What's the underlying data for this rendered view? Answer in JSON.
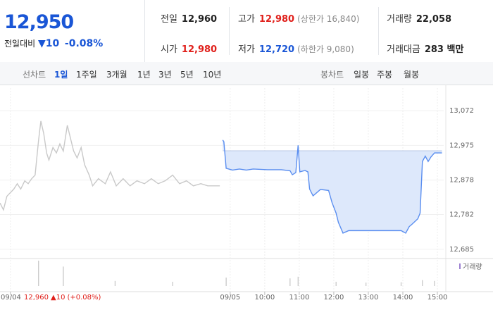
{
  "header": {
    "price": "12,950",
    "change_label": "전일대비",
    "change": "10",
    "change_pct": "-0.08%",
    "stats": [
      {
        "label": "전일",
        "value": "12,960"
      },
      {
        "label": "고가",
        "value": "12,980",
        "extra": "(상한가 16,840)"
      },
      {
        "label": "거래량",
        "value": "22,058"
      },
      {
        "label": "시가",
        "value": "12,980"
      },
      {
        "label": "저가",
        "value": "12,720",
        "extra": "(하한가 9,080)"
      },
      {
        "label": "거래대금",
        "value": "283 백만"
      }
    ]
  },
  "tabs": {
    "line_label": "선차트",
    "line_periods": [
      "1일",
      "1주일",
      "3개월",
      "1년",
      "3년",
      "5년",
      "10년"
    ],
    "candle_label": "봉차트",
    "candle_periods": [
      "일봉",
      "주봉",
      "월봉"
    ]
  },
  "chart_data": {
    "type": "line",
    "xlim": [
      -400,
      371
    ],
    "ylim": [
      12663,
      13135
    ],
    "yticks": [
      {
        "value": 13072,
        "label": "13,072"
      },
      {
        "value": 12975,
        "label": "12,975"
      },
      {
        "value": 12878,
        "label": "12,878"
      },
      {
        "value": 12782,
        "label": "12,782"
      },
      {
        "value": 12685,
        "label": "12,685"
      }
    ],
    "xticks": [
      {
        "value": -382,
        "label": "09/04"
      },
      {
        "value": 0,
        "label": "09/05"
      },
      {
        "value": 60,
        "label": "10:00"
      },
      {
        "value": 120,
        "label": "11:00"
      },
      {
        "value": 180,
        "label": "12:00"
      },
      {
        "value": 240,
        "label": "13:00"
      },
      {
        "value": 300,
        "label": "14:00"
      },
      {
        "value": 360,
        "label": "15:00"
      }
    ],
    "baseline": 12960,
    "series": [
      {
        "color": "#c9c9c9",
        "x": [
          -400,
          -394,
          -388,
          -382,
          -376,
          -370,
          -364,
          -357,
          -351,
          -345,
          -339,
          -333,
          -329,
          -324,
          -319,
          -315,
          -308,
          -302,
          -296,
          -290,
          -283,
          -278,
          -272,
          -266,
          -259,
          -253,
          -245,
          -239,
          -229,
          -217,
          -208,
          -198,
          -186,
          -174,
          -162,
          -149,
          -137,
          -125,
          -113,
          -100,
          -88,
          -76,
          -64,
          -51,
          -39,
          -27,
          -18
        ],
        "values": [
          12814,
          12795,
          12833,
          12843,
          12853,
          12868,
          12853,
          12876,
          12868,
          12882,
          12892,
          12989,
          13043,
          13008,
          12954,
          12934,
          12969,
          12954,
          12979,
          12959,
          13031,
          12998,
          12959,
          12940,
          12969,
          12921,
          12892,
          12862,
          12882,
          12868,
          12901,
          12862,
          12882,
          12862,
          12876,
          12868,
          12882,
          12868,
          12876,
          12892,
          12868,
          12876,
          12862,
          12868,
          12862,
          12862,
          12862
        ]
      },
      {
        "color": "#5a8ef0",
        "fill": "#dde8fb",
        "x": [
          -13,
          -11,
          -7,
          4,
          16,
          28,
          40,
          65,
          89,
          104,
          108,
          114,
          118,
          121,
          130,
          135,
          138,
          144,
          157,
          171,
          177,
          184,
          188,
          196,
          206,
          236,
          267,
          297,
          305,
          311,
          316,
          326,
          330,
          334,
          339,
          344,
          349,
          355,
          368
        ],
        "values": [
          12990,
          12985,
          12911,
          12906,
          12909,
          12906,
          12909,
          12907,
          12907,
          12904,
          12893,
          12899,
          12975,
          12901,
          12905,
          12901,
          12853,
          12834,
          12852,
          12849,
          12815,
          12786,
          12760,
          12730,
          12737,
          12737,
          12737,
          12737,
          12730,
          12748,
          12755,
          12770,
          12786,
          12930,
          12945,
          12930,
          12943,
          12954,
          12954
        ]
      }
    ],
    "volume": {
      "name": "거래량",
      "color": "#c4c4c4",
      "x": [
        -333,
        -290,
        -200,
        -100,
        -7,
        104,
        118,
        184,
        236,
        297,
        334,
        355
      ],
      "values": [
        3000,
        2300,
        600,
        500,
        1000,
        900,
        1100,
        500,
        400,
        450,
        700,
        600
      ]
    },
    "annotation": {
      "price": "12,960",
      "change": "10",
      "change_pct": "(+0.08%)"
    }
  }
}
